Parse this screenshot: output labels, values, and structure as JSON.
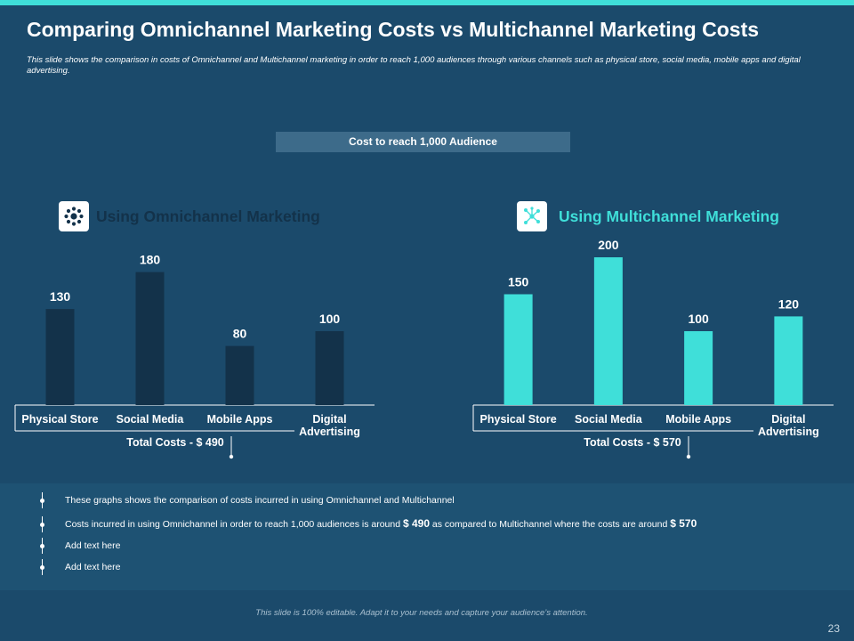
{
  "slide": {
    "title": "Comparing Omnichannel Marketing Costs vs Multichannel Marketing Costs",
    "subtitle": "This slide shows the comparison in costs of Omnichannel and Multichannel marketing in order to reach 1,000 audiences through various channels such as physical store, social media, mobile apps and digital advertising.",
    "header": "Cost to reach 1,000 Audience",
    "footer": "This slide is 100% editable. Adapt it to your needs and capture your audience’s attention.",
    "page_number": "23",
    "colors": {
      "background": "#1b4a6b",
      "accent": "#3fdfd9",
      "omni_bar": "#13324a",
      "multi_bar": "#3fdfd9"
    },
    "icons": {
      "omni": "network-hub-icon",
      "multi": "network-nodes-icon"
    }
  },
  "chart_data": [
    {
      "type": "bar",
      "title": "Using Omnichannel Marketing",
      "categories": [
        "Physical Store",
        "Social Media",
        "Mobile Apps",
        "Digital Advertising"
      ],
      "values": [
        130,
        180,
        80,
        100
      ],
      "total_label": "Total Costs - $ 490",
      "ylim": [
        0,
        200
      ],
      "grid": false
    },
    {
      "type": "bar",
      "title": "Using Multichannel Marketing",
      "categories": [
        "Physical Store",
        "Social Media",
        "Mobile Apps",
        "Digital Advertising"
      ],
      "values": [
        150,
        200,
        100,
        120
      ],
      "total_label": "Total Costs - $ 570",
      "ylim": [
        0,
        200
      ],
      "grid": false
    }
  ],
  "bullets": [
    {
      "text": "These graphs shows the comparison of costs incurred in using Omnichannel and Multichannel"
    },
    {
      "pre": "Costs incurred in using Omnichannel in order to reach 1,000 audiences is around ",
      "v1": "$ 490",
      "mid": " as compared to Multichannel where the costs are around ",
      "v2": "$ 570"
    },
    {
      "text": "Add text here"
    },
    {
      "text": "Add text here"
    }
  ]
}
